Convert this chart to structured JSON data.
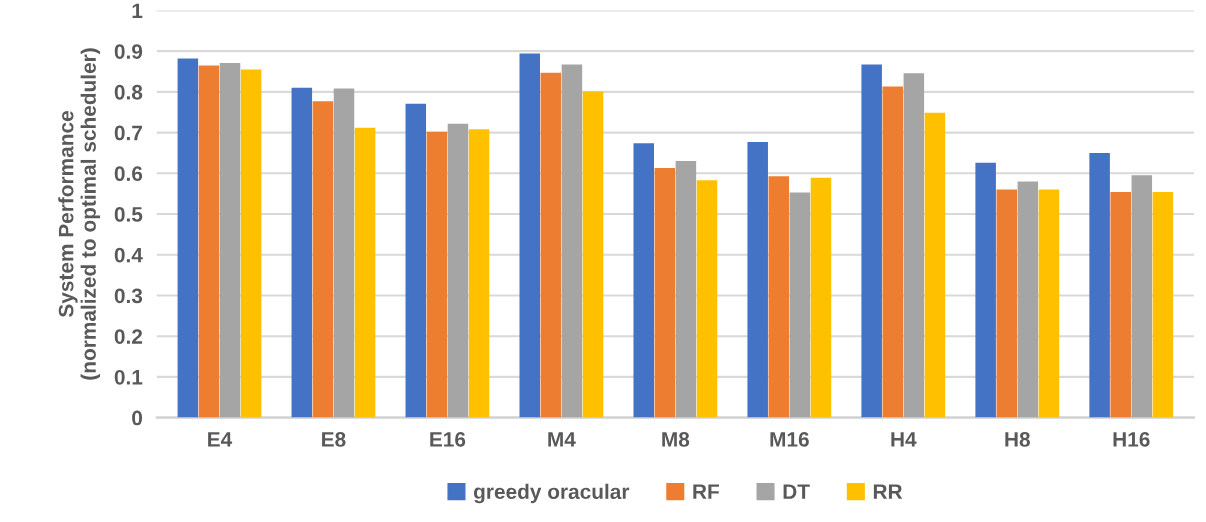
{
  "chart_data": {
    "type": "bar",
    "ylabel": "System Performance\n(normalized to optimal scheduler)",
    "categories": [
      "E4",
      "E8",
      "E16",
      "M4",
      "M8",
      "M16",
      "H4",
      "H8",
      "H16"
    ],
    "series": [
      {
        "name": "greedy oracular",
        "color": "#4472c4",
        "values": [
          0.882,
          0.81,
          0.771,
          0.894,
          0.674,
          0.677,
          0.867,
          0.626,
          0.65
        ]
      },
      {
        "name": "RF",
        "color": "#ed7d31",
        "values": [
          0.865,
          0.777,
          0.702,
          0.847,
          0.613,
          0.593,
          0.813,
          0.56,
          0.554
        ]
      },
      {
        "name": "DT",
        "color": "#a5a5a5",
        "values": [
          0.871,
          0.808,
          0.722,
          0.867,
          0.63,
          0.553,
          0.846,
          0.58,
          0.595
        ]
      },
      {
        "name": "RR",
        "color": "#ffc000",
        "values": [
          0.855,
          0.712,
          0.708,
          0.801,
          0.583,
          0.589,
          0.749,
          0.56,
          0.554
        ]
      }
    ],
    "ylim": [
      0,
      1
    ],
    "yticks": [
      0,
      0.1,
      0.2,
      0.3,
      0.4,
      0.5,
      0.6,
      0.7,
      0.8,
      0.9,
      1
    ],
    "grid": "y",
    "legend": "bottom"
  }
}
